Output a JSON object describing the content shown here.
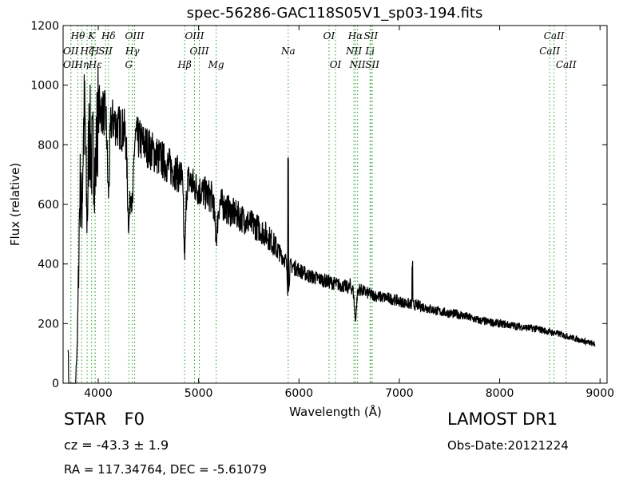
{
  "chart_data": {
    "type": "line",
    "title": "spec-56286-GAC118S05V1_sp03-194.fits",
    "xlabel": "Wavelength (Å)",
    "ylabel": "Flux (relative)",
    "xlim": [
      3650,
      9070
    ],
    "ylim": [
      0,
      1200
    ],
    "x_ticks": [
      4000,
      5000,
      6000,
      7000,
      8000,
      9000
    ],
    "y_ticks": [
      0,
      200,
      400,
      600,
      800,
      1000,
      1200
    ],
    "grid": false,
    "line_color": "#000000",
    "marker_color": "#2ca02c",
    "continuum": [
      [
        3700,
        620
      ],
      [
        3730,
        720
      ],
      [
        3760,
        900
      ],
      [
        3800,
        950
      ],
      [
        3850,
        900
      ],
      [
        3900,
        930
      ],
      [
        3950,
        950
      ],
      [
        4000,
        930
      ],
      [
        4050,
        910
      ],
      [
        4100,
        890
      ],
      [
        4150,
        880
      ],
      [
        4200,
        860
      ],
      [
        4300,
        840
      ],
      [
        4400,
        820
      ],
      [
        4500,
        790
      ],
      [
        4600,
        760
      ],
      [
        4700,
        730
      ],
      [
        4800,
        700
      ],
      [
        4900,
        680
      ],
      [
        5000,
        650
      ],
      [
        5100,
        630
      ],
      [
        5200,
        610
      ],
      [
        5300,
        580
      ],
      [
        5400,
        560
      ],
      [
        5500,
        540
      ],
      [
        5600,
        520
      ],
      [
        5700,
        490
      ],
      [
        5800,
        440
      ],
      [
        5900,
        400
      ],
      [
        6000,
        380
      ],
      [
        6100,
        360
      ],
      [
        6200,
        350
      ],
      [
        6300,
        340
      ],
      [
        6400,
        330
      ],
      [
        6500,
        320
      ],
      [
        6600,
        315
      ],
      [
        6700,
        300
      ],
      [
        6800,
        290
      ],
      [
        6900,
        285
      ],
      [
        7000,
        275
      ],
      [
        7100,
        265
      ],
      [
        7200,
        260
      ],
      [
        7300,
        250
      ],
      [
        7400,
        240
      ],
      [
        7500,
        235
      ],
      [
        7600,
        230
      ],
      [
        7700,
        220
      ],
      [
        7800,
        210
      ],
      [
        7900,
        205
      ],
      [
        8000,
        200
      ],
      [
        8100,
        195
      ],
      [
        8200,
        190
      ],
      [
        8300,
        185
      ],
      [
        8400,
        180
      ],
      [
        8500,
        172
      ],
      [
        8600,
        165
      ],
      [
        8700,
        155
      ],
      [
        8800,
        145
      ],
      [
        8900,
        135
      ],
      [
        8950,
        130
      ]
    ],
    "features": [
      [
        3719,
        470,
        60
      ],
      [
        3734,
        470,
        60
      ],
      [
        3750,
        490,
        60
      ],
      [
        3771,
        490,
        60
      ],
      [
        3798,
        440,
        40
      ],
      [
        3835,
        300,
        30
      ],
      [
        3889,
        360,
        30
      ],
      [
        3934,
        180,
        40
      ],
      [
        3970,
        220,
        40
      ],
      [
        4102,
        250,
        30
      ],
      [
        4305,
        300,
        40
      ],
      [
        4341,
        230,
        30
      ],
      [
        4861,
        250,
        30
      ],
      [
        5175,
        120,
        40
      ],
      [
        5893,
        110,
        25
      ],
      [
        6563,
        100,
        30
      ]
    ],
    "peaks": [
      [
        5893,
        800
      ],
      [
        7130,
        395
      ],
      [
        6510,
        330
      ]
    ],
    "lines": [
      {
        "label": "OII",
        "x": 3727,
        "row": 2
      },
      {
        "label": "Hθ",
        "x": 3797,
        "row": 0
      },
      {
        "label": "OII",
        "x": 3727,
        "row": 1
      },
      {
        "label": "Hη",
        "x": 3835,
        "row": 2
      },
      {
        "label": "K",
        "x": 3934,
        "row": 0
      },
      {
        "label": "Hζ",
        "x": 3889,
        "row": 1
      },
      {
        "label": "H",
        "x": 3968,
        "row": 1
      },
      {
        "label": "SII",
        "x": 4072,
        "row": 1
      },
      {
        "label": "Hε",
        "x": 3970,
        "row": 2
      },
      {
        "label": "Hδ",
        "x": 4102,
        "row": 0
      },
      {
        "label": "OIII",
        "x": 4363,
        "row": 0
      },
      {
        "label": "Hγ",
        "x": 4340,
        "row": 1
      },
      {
        "label": "G",
        "x": 4305,
        "row": 2
      },
      {
        "label": "OIII",
        "x": 4959,
        "row": 0
      },
      {
        "label": "Hβ",
        "x": 4861,
        "row": 2
      },
      {
        "label": "OIII",
        "x": 5007,
        "row": 1
      },
      {
        "label": "Mg",
        "x": 5175,
        "row": 2
      },
      {
        "label": "Na",
        "x": 5893,
        "row": 1
      },
      {
        "label": "OI",
        "x": 6300,
        "row": 0
      },
      {
        "label": "OI",
        "x": 6364,
        "row": 2
      },
      {
        "label": "Hα",
        "x": 6563,
        "row": 0
      },
      {
        "label": "SII",
        "x": 6717,
        "row": 0
      },
      {
        "label": "NII",
        "x": 6548,
        "row": 1
      },
      {
        "label": "Li",
        "x": 6708,
        "row": 1
      },
      {
        "label": "NII",
        "x": 6584,
        "row": 2
      },
      {
        "label": "SII",
        "x": 6731,
        "row": 2
      },
      {
        "label": "CaII",
        "x": 8542,
        "row": 0
      },
      {
        "label": "CaII",
        "x": 8498,
        "row": 1
      },
      {
        "label": "CaII",
        "x": 8662,
        "row": 2
      }
    ]
  },
  "info": {
    "class": "STAR",
    "subclass": "F0",
    "cz": "cz = -43.3 ± 1.9",
    "radec": "RA = 117.34764, DEC = -5.61079",
    "survey": "LAMOST DR1",
    "obsdate": "Obs-Date:20121224"
  }
}
